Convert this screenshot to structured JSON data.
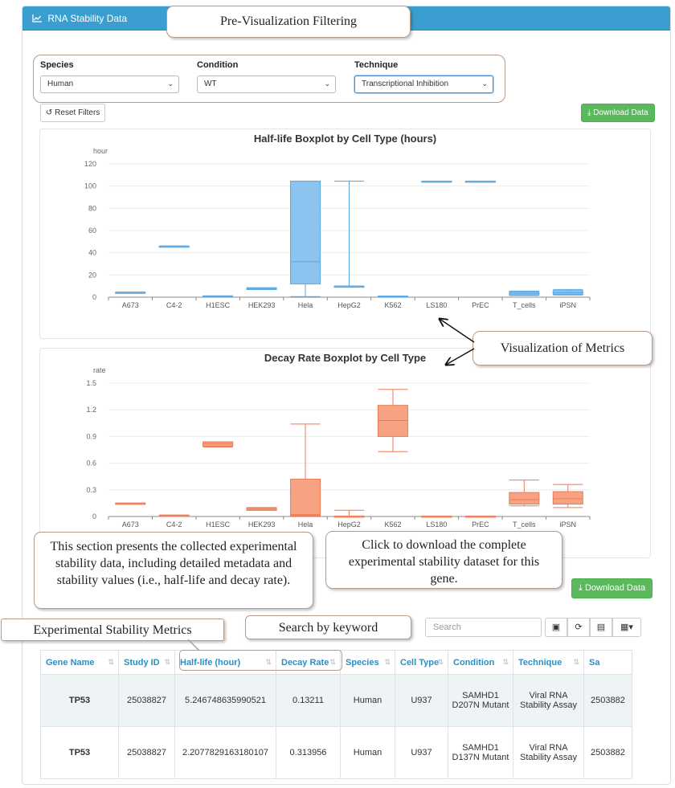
{
  "panel": {
    "title": "RNA Stability Data"
  },
  "filters": {
    "species": {
      "label": "Species",
      "value": "Human"
    },
    "condition": {
      "label": "Condition",
      "value": "WT"
    },
    "technique": {
      "label": "Technique",
      "value": "Transcriptional Inhibition"
    }
  },
  "buttons": {
    "reset": "Reset Filters",
    "download_top": "Download Data",
    "download_bottom": "Download Data"
  },
  "search": {
    "placeholder": "Search"
  },
  "annotations": {
    "prefilter": "Pre-Visualization Filtering",
    "metrics": "Visualization of Metrics",
    "section_note": "This section presents the collected experimental stability data, including detailed metadata and stability values (i.e., half-life and decay rate).",
    "download_note": "Click to download the complete experimental stability dataset for this gene.",
    "exp_metrics": "Experimental Stability Metrics",
    "search_note": "Search by keyword"
  },
  "table": {
    "headers": [
      "Gene Name",
      "Study ID",
      "Half-life (hour)",
      "Decay Rate",
      "Species",
      "Cell Type",
      "Condition",
      "Technique",
      "Sa"
    ],
    "rows": [
      [
        "TP53",
        "25038827",
        "5.246748635990521",
        "0.13211",
        "Human",
        "U937",
        "SAMHD1 D207N Mutant",
        "Viral RNA Stability Assay",
        "2503882"
      ],
      [
        "TP53",
        "25038827",
        "2.2077829163180107",
        "0.313956",
        "Human",
        "U937",
        "SAMHD1 D137N Mutant",
        "Viral RNA Stability Assay",
        "2503882"
      ]
    ]
  },
  "colors": {
    "header_blue": "#3a9fd0",
    "box_blue": "#8cc4ef",
    "box_blue_stroke": "#5aa6e0",
    "box_orange": "#f6a283",
    "box_orange_stroke": "#ec7a55",
    "green": "#5cb85c"
  },
  "chart_data": [
    {
      "type": "boxplot",
      "title": "Half-life Boxplot by Cell Type (hours)",
      "ylabel": "hour",
      "ylim": [
        0,
        120
      ],
      "yticks": [
        0,
        20,
        40,
        60,
        80,
        100,
        120
      ],
      "categories": [
        "A673",
        "C4-2",
        "H1ESC",
        "HEK293",
        "Hela",
        "HepG2",
        "K562",
        "LS180",
        "PrEC",
        "T_cells",
        "iPSN"
      ],
      "boxes": [
        {
          "min": 4.5,
          "q1": 4.5,
          "median": 4.5,
          "q3": 4.5,
          "max": 4.5
        },
        {
          "min": 46,
          "q1": 46,
          "median": 46,
          "q3": 46,
          "max": 46
        },
        {
          "min": 0.5,
          "q1": 0.5,
          "median": 0.8,
          "q3": 1.2,
          "max": 1.2
        },
        {
          "min": 7,
          "q1": 7,
          "median": 7.5,
          "q3": 8.5,
          "max": 8.5
        },
        {
          "min": 0.5,
          "q1": 12,
          "median": 32,
          "q3": 104.5,
          "max": 104.5
        },
        {
          "min": 10,
          "q1": 10,
          "median": 10,
          "q3": 10,
          "max": 104.5
        },
        {
          "min": 0.5,
          "q1": 0.5,
          "median": 0.8,
          "q3": 1,
          "max": 1
        },
        {
          "min": 104.5,
          "q1": 104.5,
          "median": 104.5,
          "q3": 104.5,
          "max": 104.5
        },
        {
          "min": 104.5,
          "q1": 104.5,
          "median": 104.5,
          "q3": 104.5,
          "max": 104.5
        },
        {
          "min": 1.5,
          "q1": 2,
          "median": 3.5,
          "q3": 5,
          "max": 5.5
        },
        {
          "min": 2,
          "q1": 2.5,
          "median": 4,
          "q3": 6,
          "max": 7
        }
      ]
    },
    {
      "type": "boxplot",
      "title": "Decay Rate Boxplot by Cell Type",
      "ylabel": "rate",
      "ylim": [
        0,
        1.5
      ],
      "yticks": [
        0,
        0.3,
        0.6,
        0.9,
        1.2,
        1.5
      ],
      "ytick_labels": [
        "0",
        "0.3",
        "0.6",
        "0.9",
        "1.2",
        "1.5"
      ],
      "categories": [
        "A673",
        "C4-2",
        "H1ESC",
        "HEK293",
        "Hela",
        "HepG2",
        "K562",
        "LS180",
        "PrEC",
        "T_cells",
        "iPSN"
      ],
      "boxes": [
        {
          "min": 0.15,
          "q1": 0.15,
          "median": 0.15,
          "q3": 0.15,
          "max": 0.15
        },
        {
          "min": 0.015,
          "q1": 0.015,
          "median": 0.015,
          "q3": 0.015,
          "max": 0.015
        },
        {
          "min": 0.78,
          "q1": 0.79,
          "median": 0.82,
          "q3": 0.84,
          "max": 0.84
        },
        {
          "min": 0.07,
          "q1": 0.07,
          "median": 0.085,
          "q3": 0.1,
          "max": 0.1
        },
        {
          "min": 0.005,
          "q1": 0.01,
          "median": 0.02,
          "q3": 0.42,
          "max": 1.04
        },
        {
          "min": 0.005,
          "q1": 0.005,
          "median": 0.005,
          "q3": 0.005,
          "max": 0.07
        },
        {
          "min": 0.73,
          "q1": 0.9,
          "median": 1.08,
          "q3": 1.25,
          "max": 1.43
        },
        {
          "min": 0.005,
          "q1": 0.005,
          "median": 0.005,
          "q3": 0.005,
          "max": 0.005
        },
        {
          "min": 0.005,
          "q1": 0.005,
          "median": 0.005,
          "q3": 0.005,
          "max": 0.005
        },
        {
          "min": 0.12,
          "q1": 0.14,
          "median": 0.19,
          "q3": 0.27,
          "max": 0.41
        },
        {
          "min": 0.1,
          "q1": 0.14,
          "median": 0.2,
          "q3": 0.28,
          "max": 0.36
        }
      ]
    }
  ]
}
